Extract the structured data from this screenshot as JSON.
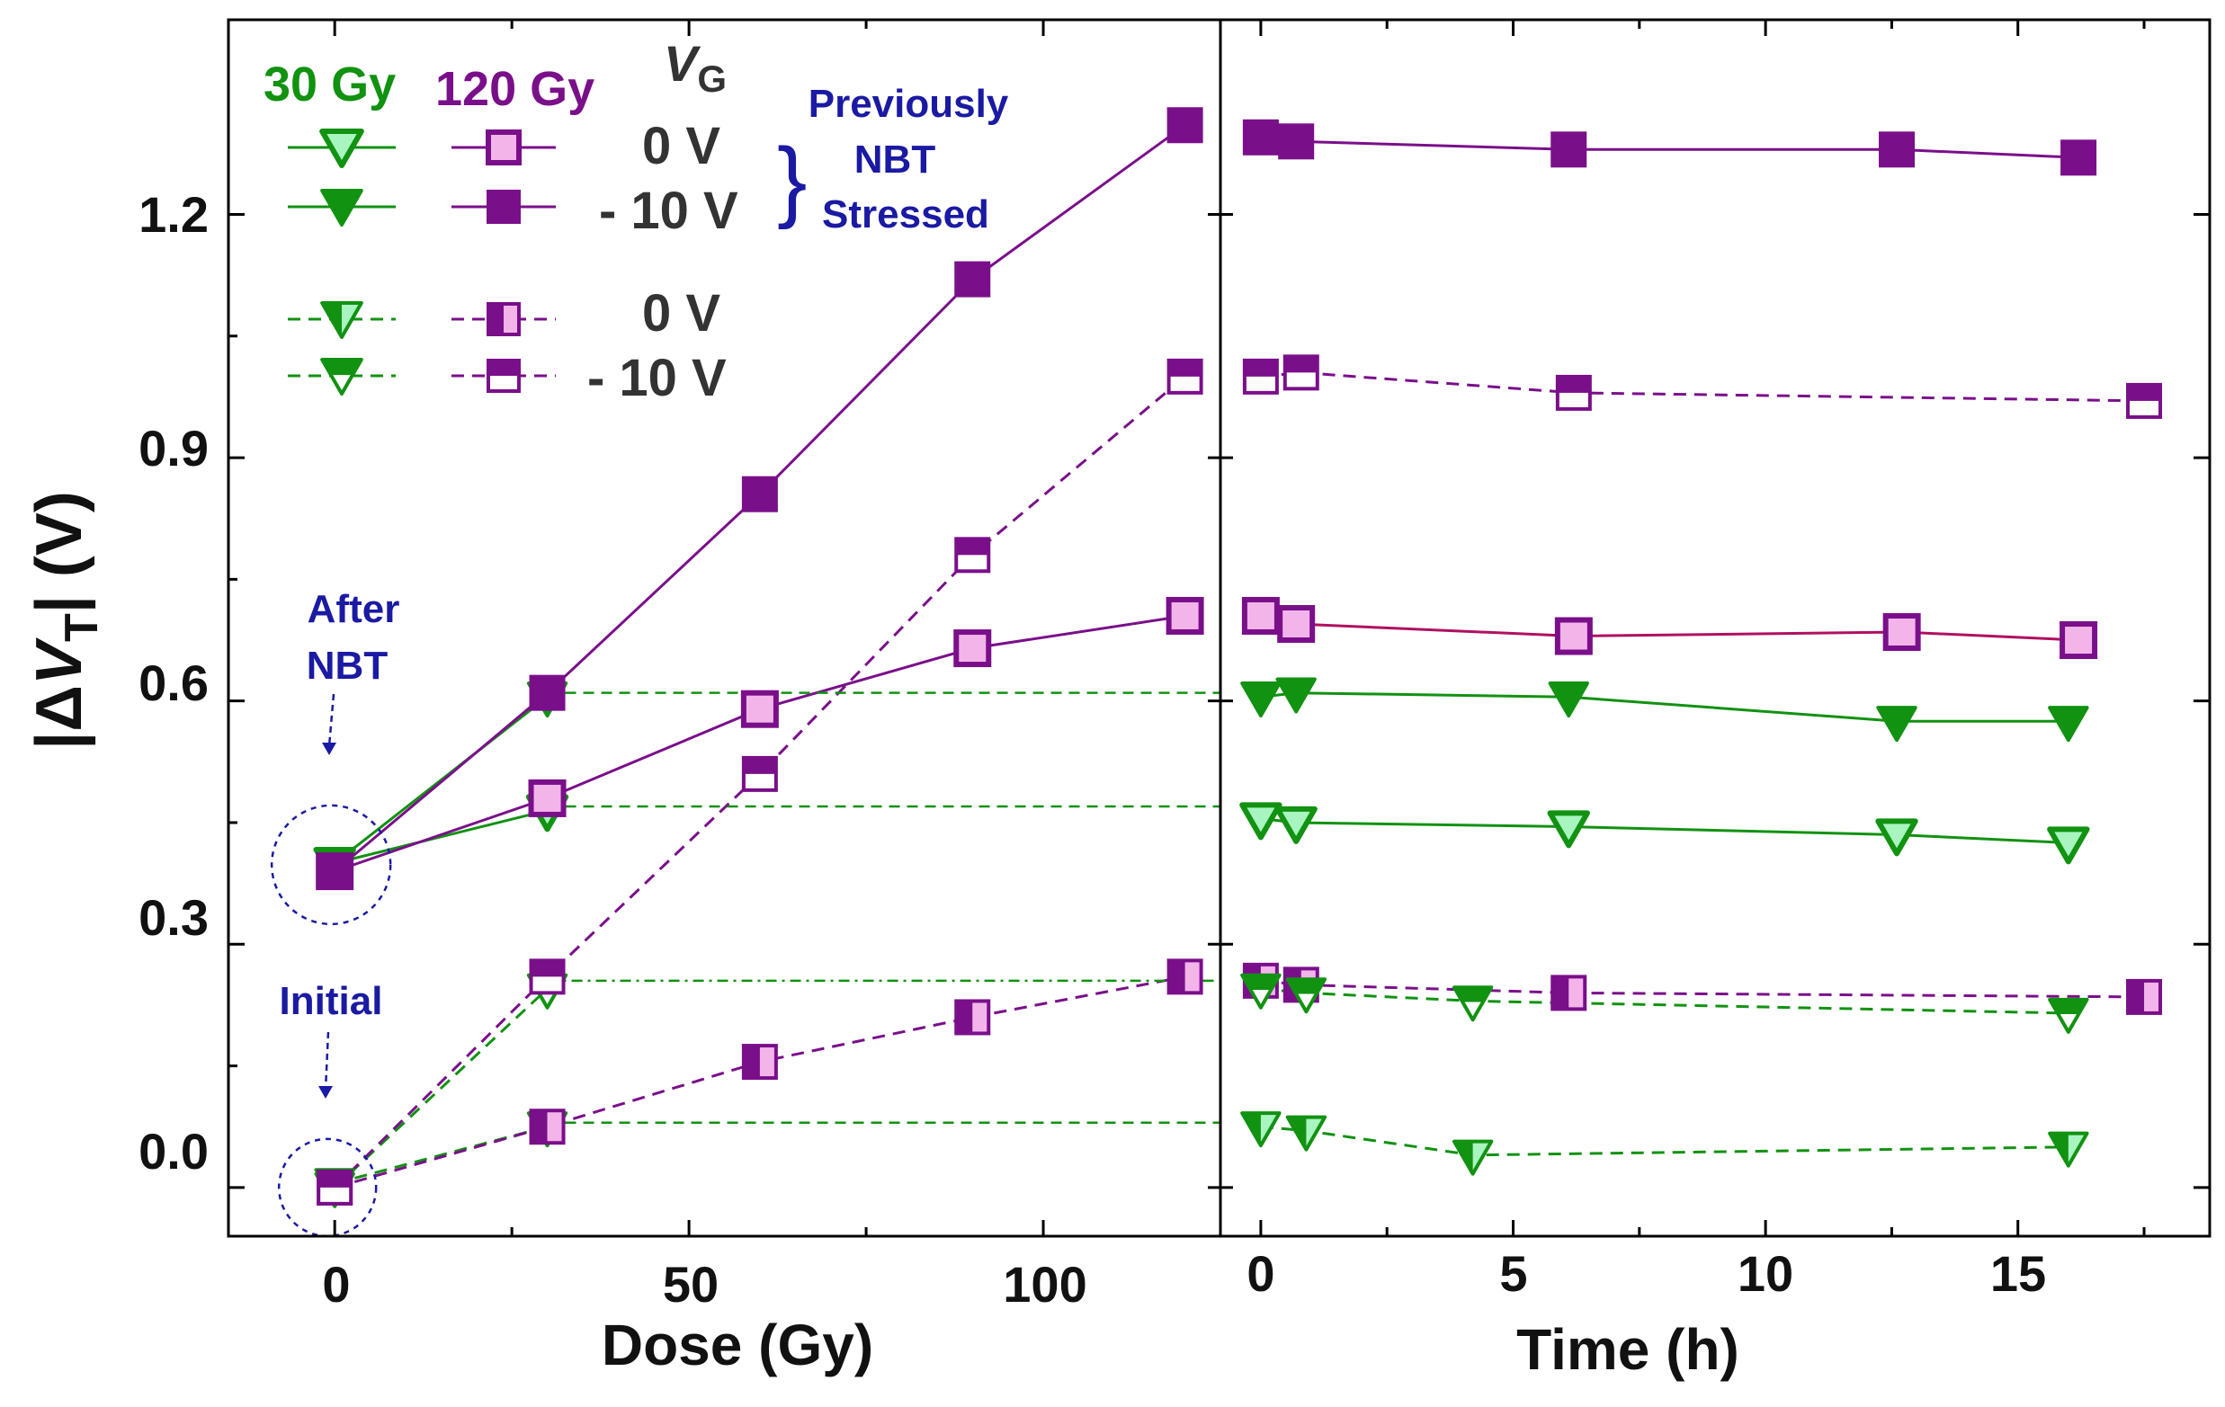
{
  "colors": {
    "green": "#119211",
    "green_light": "#a8f5c0",
    "purple": "#7a0f8a",
    "purple_light": "#f3b4ea",
    "navy": "#1a1aa3",
    "crimson_line": "#b01060"
  },
  "chart_data": {
    "type": "scatter",
    "y_axis": {
      "label_prefix": "|Δ",
      "label_var": "V",
      "label_sub": "T",
      "label_suffix": "| (V)",
      "ylim": [
        -0.06,
        1.44
      ],
      "ticks": [
        0.0,
        0.3,
        0.6,
        0.9,
        1.2
      ],
      "tick_labels": [
        "0.0",
        "0.3",
        "0.6",
        "0.9",
        "1.2"
      ]
    },
    "panels": [
      {
        "id": "dose",
        "xlabel": "Dose (Gy)",
        "xlim": [
          -15,
          125
        ],
        "ticks": [
          0,
          50,
          100
        ],
        "tick_labels": [
          "0",
          "50",
          "100"
        ],
        "series": [
          {
            "name": "30 Gy, 0 V, previously NBT stressed",
            "marker": "tri",
            "fill": "light",
            "color": "green",
            "line": "solid",
            "x": [
              0,
              30
            ],
            "y": [
              0.4,
              0.465
            ]
          },
          {
            "name": "30 Gy, -10 V, previously NBT stressed",
            "marker": "tri",
            "fill": "full",
            "color": "green",
            "line": "solid",
            "x": [
              0,
              30
            ],
            "y": [
              0.4,
              0.605
            ]
          },
          {
            "name": "30 Gy, 0 V, initial",
            "marker": "tri",
            "fill": "half",
            "color": "green",
            "line": "dashed",
            "x": [
              0,
              30
            ],
            "y": [
              0.005,
              0.075
            ]
          },
          {
            "name": "30 Gy, -10 V, initial",
            "marker": "tri",
            "fill": "open",
            "color": "green",
            "line": "dashed",
            "x": [
              0,
              30
            ],
            "y": [
              0.0,
              0.245
            ]
          },
          {
            "name": "120 Gy, 0 V, previously NBT stressed",
            "marker": "sq",
            "fill": "light",
            "color": "purple",
            "line": "solid",
            "x": [
              0,
              30,
              60,
              90,
              120
            ],
            "y": [
              0.39,
              0.48,
              0.59,
              0.665,
              0.705
            ]
          },
          {
            "name": "120 Gy, -10 V, previously NBT stressed",
            "marker": "sq",
            "fill": "full",
            "color": "purple",
            "line": "solid",
            "x": [
              0,
              30,
              60,
              90,
              120
            ],
            "y": [
              0.39,
              0.61,
              0.855,
              1.12,
              1.31
            ]
          },
          {
            "name": "120 Gy, 0 V, initial",
            "marker": "sq",
            "fill": "half",
            "color": "purple",
            "line": "dashed",
            "x": [
              0,
              30,
              60,
              90,
              120
            ],
            "y": [
              0.0,
              0.075,
              0.155,
              0.21,
              0.26
            ]
          },
          {
            "name": "120 Gy, -10 V, initial",
            "marker": "sq",
            "fill": "open",
            "color": "purple",
            "line": "dashed",
            "x": [
              0,
              30,
              60,
              90,
              120
            ],
            "y": [
              0.0,
              0.26,
              0.51,
              0.78,
              1.0
            ]
          }
        ],
        "reference_lines_y": [
          0.61,
          0.47,
          0.255,
          0.08
        ]
      },
      {
        "id": "time",
        "xlabel": "Time (h)",
        "xlim": [
          -0.8,
          18.8
        ],
        "ticks": [
          0,
          5,
          10,
          15
        ],
        "tick_labels": [
          "0",
          "5",
          "10",
          "15"
        ],
        "series": [
          {
            "name": "120 Gy, -10 V, previously NBT stressed",
            "marker": "sq",
            "fill": "full",
            "color": "purple",
            "line": "solid",
            "x": [
              0,
              0.7,
              6.1,
              12.6,
              16.2
            ],
            "y": [
              1.295,
              1.29,
              1.28,
              1.28,
              1.27
            ]
          },
          {
            "name": "120 Gy, -10 V, initial",
            "marker": "sq",
            "fill": "open",
            "color": "purple",
            "line": "dashed",
            "x": [
              0,
              0.8,
              6.2,
              17.5
            ],
            "y": [
              1.0,
              1.005,
              0.98,
              0.97
            ]
          },
          {
            "name": "120 Gy, 0 V, previously NBT stressed",
            "marker": "sq",
            "fill": "light",
            "color": "purple",
            "line": "solid",
            "x": [
              0,
              0.7,
              6.2,
              12.7,
              16.2
            ],
            "y": [
              0.705,
              0.695,
              0.68,
              0.685,
              0.675
            ]
          },
          {
            "name": "30 Gy, -10 V, previously NBT stressed",
            "marker": "tri",
            "fill": "full",
            "color": "green",
            "line": "solid",
            "x": [
              0,
              0.7,
              6.1,
              12.6,
              16.0
            ],
            "y": [
              0.605,
              0.61,
              0.605,
              0.575,
              0.575
            ]
          },
          {
            "name": "30 Gy, 0 V, previously NBT stressed",
            "marker": "tri",
            "fill": "light",
            "color": "green",
            "line": "solid",
            "x": [
              0,
              0.7,
              6.1,
              12.6,
              16.0
            ],
            "y": [
              0.455,
              0.45,
              0.445,
              0.435,
              0.425
            ]
          },
          {
            "name": "120 Gy, 0 V, initial",
            "marker": "sq",
            "fill": "half",
            "color": "purple",
            "line": "dashed",
            "x": [
              0,
              0.8,
              6.1,
              17.5
            ],
            "y": [
              0.255,
              0.25,
              0.24,
              0.235
            ]
          },
          {
            "name": "30 Gy, -10 V, initial",
            "marker": "tri",
            "fill": "open",
            "color": "green",
            "line": "dashed",
            "x": [
              0,
              0.9,
              4.2,
              16.0
            ],
            "y": [
              0.245,
              0.24,
              0.23,
              0.215
            ]
          },
          {
            "name": "30 Gy, 0 V, initial",
            "marker": "tri",
            "fill": "half",
            "color": "green",
            "line": "dashed",
            "x": [
              0,
              0.9,
              4.2,
              16.0
            ],
            "y": [
              0.075,
              0.07,
              0.04,
              0.05
            ]
          }
        ]
      }
    ],
    "legend": {
      "dose_30": "30 Gy",
      "dose_120": "120 Gy",
      "vg_var": "V",
      "vg_sub": "G",
      "rows": [
        "0 V",
        "- 10 V",
        "0 V",
        "- 10 V"
      ],
      "bracket": "}",
      "group_label": [
        "Previously",
        "NBT",
        "Stressed"
      ]
    },
    "annotations": {
      "after_nbt": [
        "After",
        "NBT"
      ],
      "initial": "Initial"
    }
  }
}
